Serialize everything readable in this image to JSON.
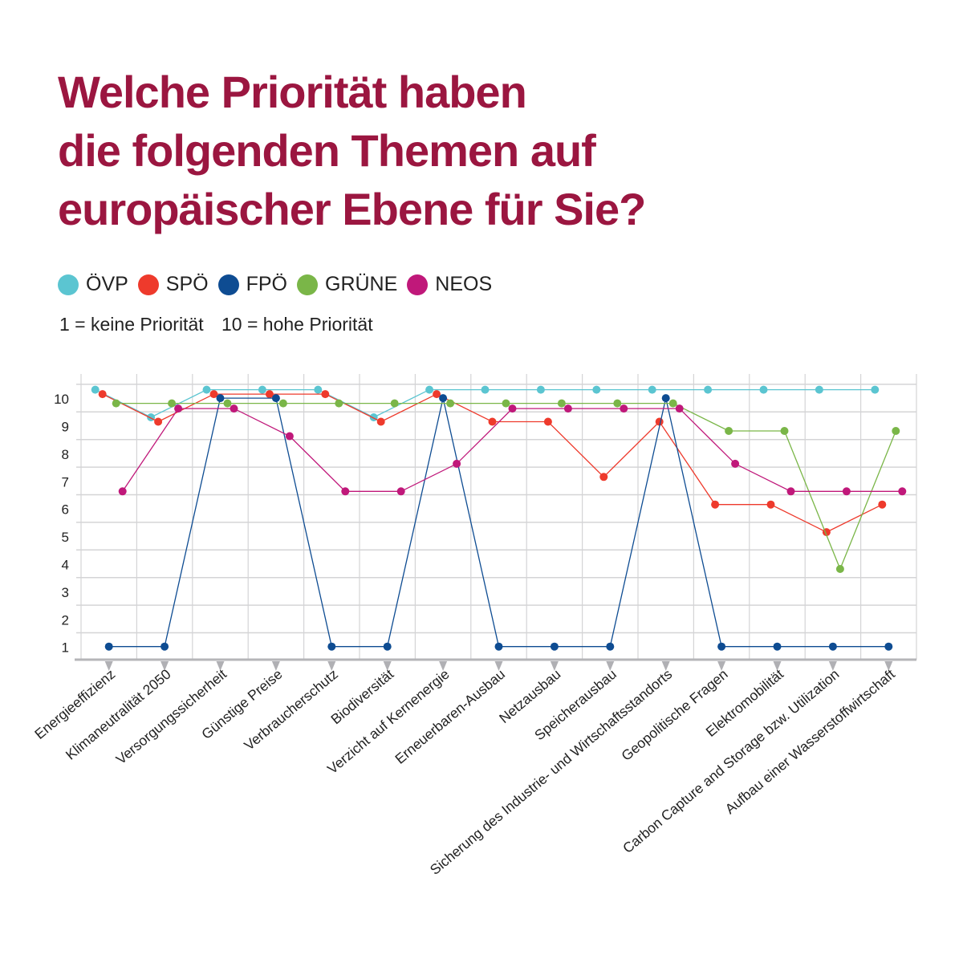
{
  "title": {
    "lines": [
      "Welche Priorität haben",
      "die folgenden Themen auf",
      "europäischer Ebene für Sie?"
    ]
  },
  "scale_note": {
    "low": "1 = keine Priorität",
    "high": "10 = hohe Priorität"
  },
  "chart_data": {
    "type": "line",
    "title": "Welche Priorität haben die folgenden Themen auf europäischer Ebene für Sie?",
    "xlabel": "",
    "ylabel": "",
    "ylim": [
      1,
      10
    ],
    "yticks": [
      "1",
      "2",
      "3",
      "4",
      "5",
      "6",
      "7",
      "8",
      "9",
      "10"
    ],
    "grid": true,
    "legend_position": "top-left",
    "categories": [
      "Energieeffizienz",
      "Klimaneutralität 2050",
      "Versorgungssicherheit",
      "Günstige Preise",
      "Verbraucherschutz",
      "Biodiversität",
      "Verzicht auf Kernenergie",
      "Erneuerbaren-Ausbau",
      "Netzausbau",
      "Speicherausbau",
      "Sicherung des Industrie- und Wirtschaftsstandorts",
      "Geopolitische Fragen",
      "Elektromobilität",
      "Carbon Capture and Storage bzw. Utilization",
      "Aufbau einer Wasserstoffwirtschaft"
    ],
    "series": [
      {
        "name": "ÖVP",
        "color": "#5bc5d1",
        "values": [
          10,
          9,
          10,
          10,
          10,
          9,
          10,
          10,
          10,
          10,
          10,
          10,
          10,
          10,
          10
        ]
      },
      {
        "name": "SPÖ",
        "color": "#ee3a2c",
        "values": [
          10,
          9,
          10,
          10,
          10,
          9,
          10,
          9,
          9,
          7,
          9,
          6,
          6,
          5,
          6
        ]
      },
      {
        "name": "FPÖ",
        "color": "#0e4c92",
        "values": [
          1,
          1,
          10,
          10,
          1,
          1,
          10,
          1,
          1,
          1,
          10,
          1,
          1,
          1,
          1
        ]
      },
      {
        "name": "GRÜNE",
        "color": "#7ab648",
        "values": [
          10,
          10,
          10,
          10,
          10,
          10,
          10,
          10,
          10,
          10,
          10,
          9,
          9,
          4,
          9
        ]
      },
      {
        "name": "NEOS",
        "color": "#c0187a",
        "values": [
          7,
          10,
          10,
          9,
          7,
          7,
          8,
          10,
          10,
          10,
          10,
          8,
          7,
          7,
          7
        ]
      }
    ]
  },
  "colors": {
    "title": "#9b1640",
    "grid": "#d4d4d6",
    "axis": "#b5b5b8"
  }
}
